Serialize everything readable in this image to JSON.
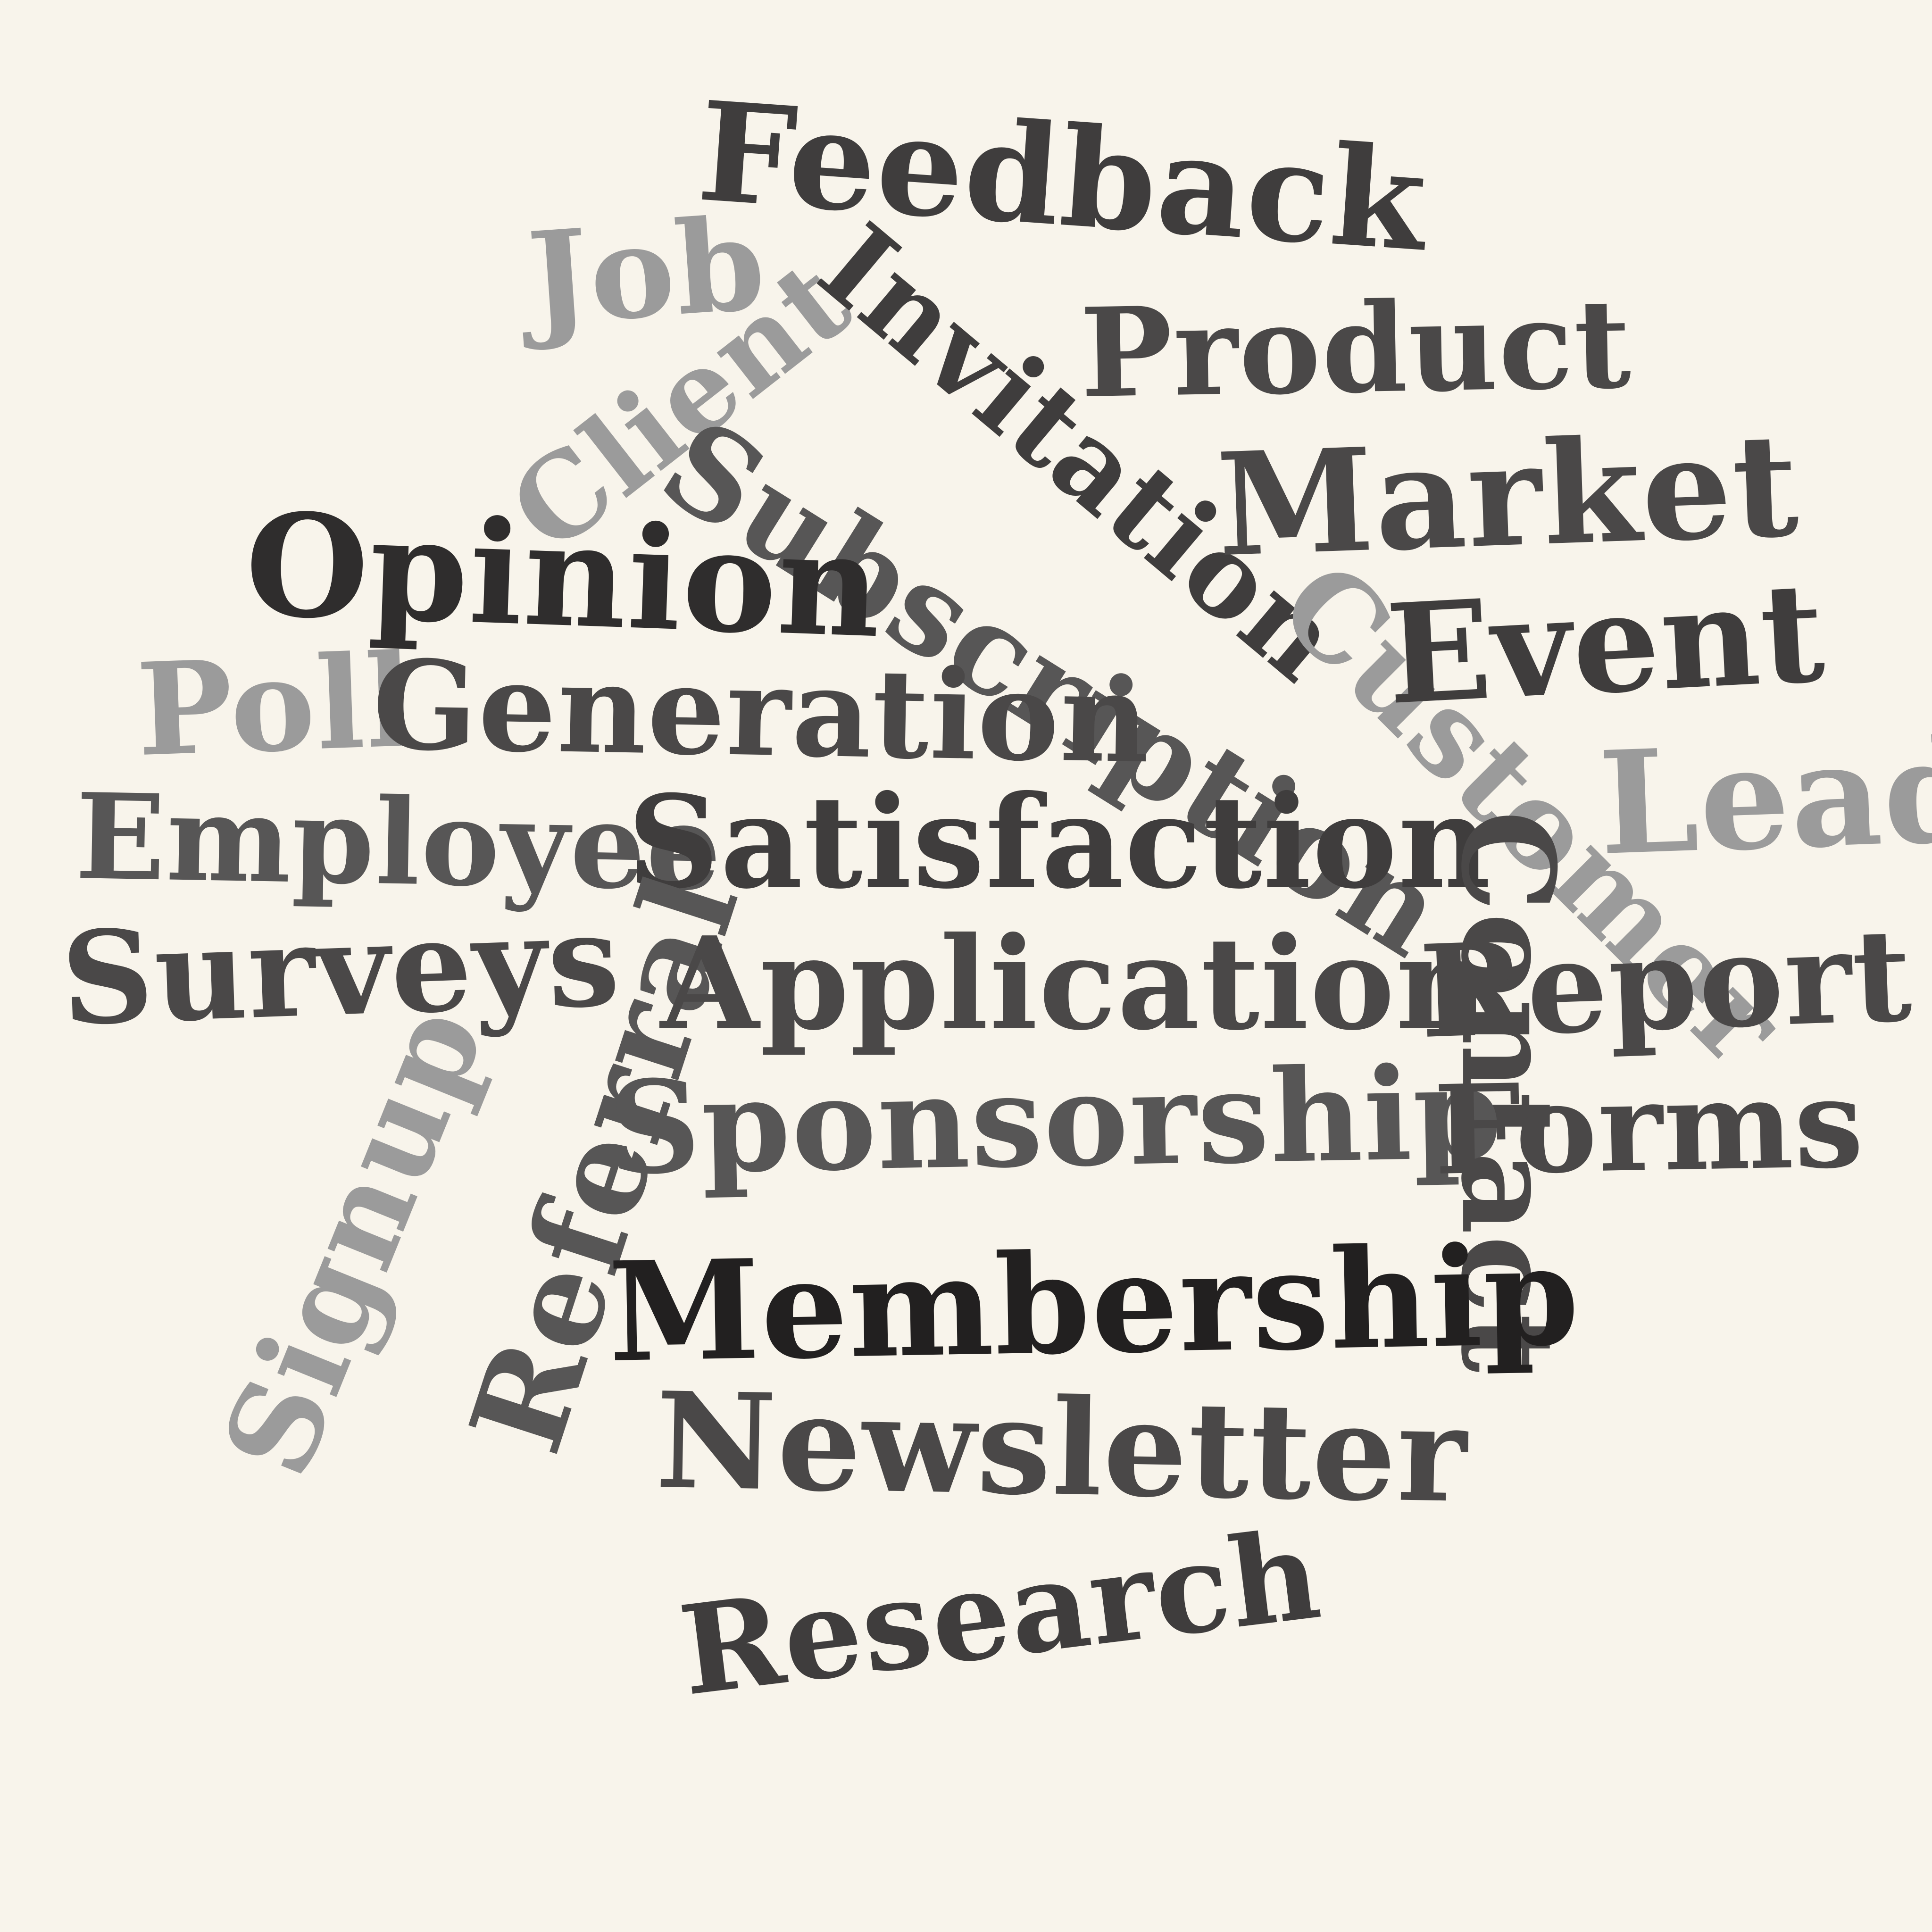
{
  "words": [
    {
      "text": "Feedback",
      "color": "#3f3d3d"
    },
    {
      "text": "Job",
      "color": "#9b9b9b"
    },
    {
      "text": "Client",
      "color": "#9b9b9b"
    },
    {
      "text": "Invitation",
      "color": "#3f3d3d"
    },
    {
      "text": "Product",
      "color": "#4a4848"
    },
    {
      "text": "Market",
      "color": "#4a4848"
    },
    {
      "text": "Subscription",
      "color": "#575656"
    },
    {
      "text": "Opinion",
      "color": "#2f2d2d"
    },
    {
      "text": "Customer",
      "color": "#9b9b9b"
    },
    {
      "text": "Event",
      "color": "#3f3d3d"
    },
    {
      "text": "Poll",
      "color": "#9b9b9b"
    },
    {
      "text": "Generation",
      "color": "#4a4848"
    },
    {
      "text": "Lead",
      "color": "#9b9b9b"
    },
    {
      "text": "Employee",
      "color": "#575656"
    },
    {
      "text": "Satisfaction",
      "color": "#3f3d3d"
    },
    {
      "text": "Contact",
      "color": "#4a4848"
    },
    {
      "text": "Surveys",
      "color": "#4a4848"
    },
    {
      "text": "Referral",
      "color": "#575656"
    },
    {
      "text": "Application",
      "color": "#4a4848"
    },
    {
      "text": "Report",
      "color": "#4a4848"
    },
    {
      "text": "Signup",
      "color": "#9b9b9b"
    },
    {
      "text": "Sponsorship",
      "color": "#575656"
    },
    {
      "text": "Forms",
      "color": "#4a4848"
    },
    {
      "text": "Membership",
      "color": "#222020"
    },
    {
      "text": "Newsletter",
      "color": "#4a4848"
    },
    {
      "text": "Research",
      "color": "#3f3d3d"
    }
  ]
}
